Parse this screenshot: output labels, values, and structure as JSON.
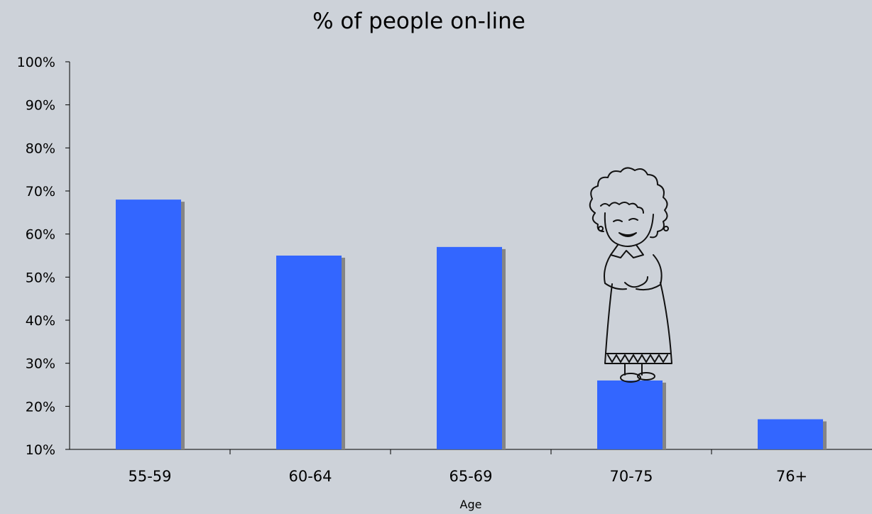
{
  "chart_data": {
    "type": "bar",
    "title": "% of people on-line",
    "xlabel": "Age",
    "ylabel": "",
    "categories": [
      "55-59",
      "60-64",
      "65-69",
      "70-75",
      "76+"
    ],
    "values": [
      68,
      55,
      57,
      26,
      17
    ],
    "ylim": [
      10,
      100
    ],
    "yticks": [
      "10%",
      "20%",
      "30%",
      "40%",
      "50%",
      "60%",
      "70%",
      "80%",
      "90%",
      "100%"
    ],
    "grid": false,
    "legend": "none"
  },
  "colors": {
    "background": "#cdd2d9",
    "bar": "#3366ff",
    "bar_shadow": "#858585",
    "axis": "#000000"
  },
  "decoration": {
    "icon": "grandmother-illustration-icon"
  }
}
